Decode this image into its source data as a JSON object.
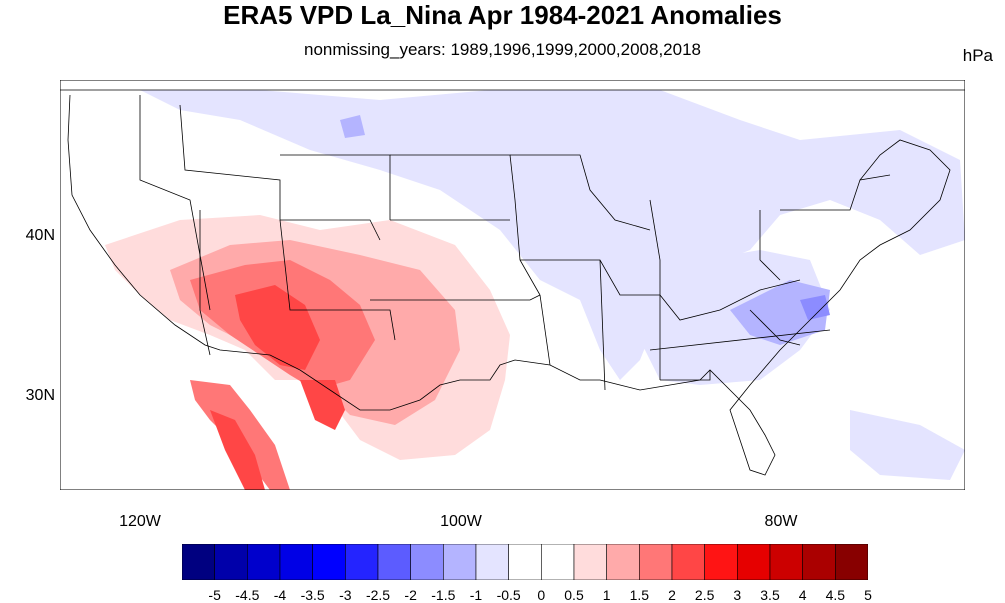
{
  "title": "ERA5 VPD La_Nina Apr 1984-2021 Anomalies",
  "subtitle": "nonmissing_years: 1989,1996,1999,2000,2008,2018",
  "units": "hPa",
  "map": {
    "projection": "lat-lon",
    "lon_range": [
      -125,
      -67
    ],
    "lat_range": [
      24,
      50
    ],
    "x_ticks": [
      "120W",
      "100W",
      "80W"
    ],
    "y_ticks": [
      "40N",
      "30N"
    ],
    "features": [
      "US state boundaries",
      "coastlines"
    ],
    "anomaly_regions": [
      {
        "name": "Southwest US / N. Mexico",
        "sign": "positive",
        "peak": 3
      },
      {
        "name": "Southeast US / Appalachians",
        "sign": "negative",
        "peak": -1.5
      },
      {
        "name": "Northern Plains / Great Lakes",
        "sign": "negative",
        "peak": -1
      }
    ]
  },
  "colorbar": {
    "labels": [
      "-5",
      "-4.5",
      "-4",
      "-3.5",
      "-3",
      "-2.5",
      "-2",
      "-1.5",
      "-1",
      "-0.5",
      "0",
      "0.5",
      "1",
      "1.5",
      "2",
      "2.5",
      "3",
      "3.5",
      "4",
      "4.5",
      "5"
    ],
    "colors": [
      "#000080",
      "#0000aa",
      "#0000cc",
      "#0000e6",
      "#0000ff",
      "#2424ff",
      "#5c5cff",
      "#8c8cff",
      "#b4b4ff",
      "#e4e4ff",
      "#ffffff",
      "#ffffff",
      "#ffdcdc",
      "#ffaaaa",
      "#ff7777",
      "#ff4646",
      "#ff1414",
      "#e60000",
      "#cc0000",
      "#aa0000",
      "#880000"
    ]
  }
}
